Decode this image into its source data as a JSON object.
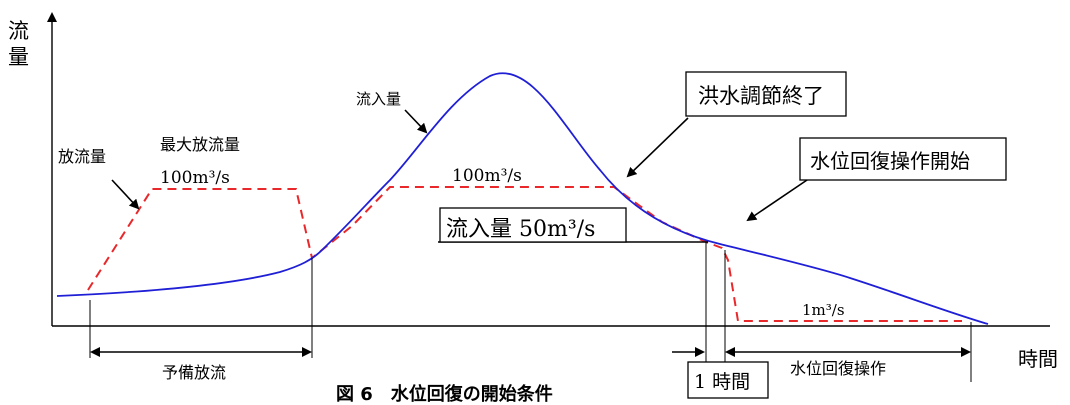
{
  "axis": {
    "y_label_line1": "流",
    "y_label_line2": "量",
    "x_label": "時間"
  },
  "curves": {
    "inflow_label": "流入量",
    "outflow_label": "放流量",
    "inflow_color": "#1f1fd6",
    "outflow_color": "#e8282b"
  },
  "labels": {
    "max_outflow_title": "最大放流量",
    "max_outflow_rate": "100m³/s",
    "mid_outflow_rate": "100m³/s",
    "inflow_threshold": "流入量 50m³/s",
    "min_outflow_rate": "1m³/s",
    "flood_control_end": "洪水調節終了",
    "recovery_start": "水位回復操作開始",
    "one_hour": "1 時間"
  },
  "spans": {
    "pre_release": "予備放流",
    "recovery_operation": "水位回復操作"
  },
  "caption": "図 6　水位回復の開始条件"
}
